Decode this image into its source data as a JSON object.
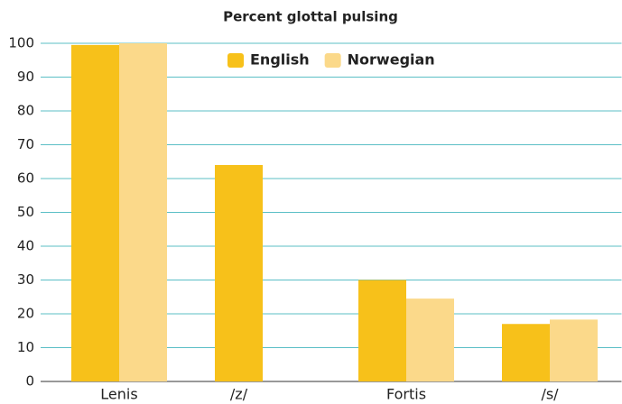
{
  "chart_data": {
    "type": "bar",
    "title": "Percent glottal pulsing",
    "categories": [
      "Lenis",
      "/z/",
      "Fortis",
      "/s/"
    ],
    "series": [
      {
        "name": "English",
        "color": "#f7c11a",
        "values": [
          99.5,
          64,
          30,
          17
        ]
      },
      {
        "name": "Norwegian",
        "color": "#fbd98a",
        "values": [
          100,
          null,
          24.5,
          18.3
        ]
      }
    ],
    "ylim": [
      0,
      100
    ],
    "yticks": [
      0,
      10,
      20,
      30,
      40,
      50,
      60,
      70,
      80,
      90,
      100
    ],
    "grid": true,
    "legend": "top"
  }
}
